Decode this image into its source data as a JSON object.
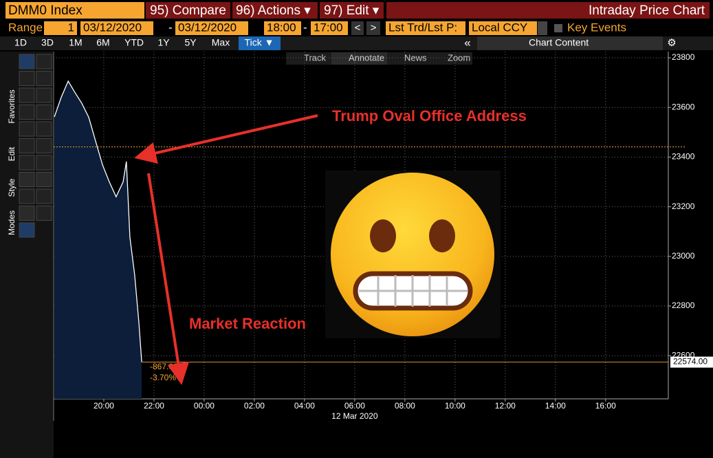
{
  "header": {
    "ticker": "DMM0 Index",
    "buttons": [
      "95) Compare",
      "96) Actions ▾",
      "97) Edit ▾"
    ],
    "title": "Intraday Price Chart"
  },
  "controls": {
    "range_label": "Range",
    "range_value": "1",
    "start_date": "03/12/2020",
    "dash": "-",
    "end_date": "03/12/2020",
    "start_time": "18:00",
    "end_time": "17:00",
    "prev": "<",
    "next": ">",
    "price_field": "Lst Trd/Lst P:",
    "currency": "Local CCY",
    "key_events": "Key Events"
  },
  "periods": [
    "1D",
    "3D",
    "1M",
    "6M",
    "YTD",
    "1Y",
    "5Y",
    "Max",
    "Tick ▼"
  ],
  "collapse": "«",
  "chart_content": "Chart Content",
  "toolbar": [
    "Track",
    "Annotate",
    "News",
    "Zoom"
  ],
  "sidebar_tabs": [
    "Favorites",
    "Edit",
    "Style",
    "Modes"
  ],
  "chart_data": {
    "type": "line",
    "color": "#ffffff",
    "area_color": "#0c1e3a",
    "x": [
      18.03,
      18.3,
      18.58,
      18.85,
      19.12,
      19.4,
      19.67,
      19.95,
      20.22,
      20.49,
      20.77,
      20.9,
      21.04,
      21.23,
      21.4,
      21.51
    ],
    "series": [
      {
        "values": [
          23562,
          23640,
          23706,
          23660,
          23617,
          23560,
          23465,
          23368,
          23300,
          23240,
          23300,
          23382,
          23077,
          22925,
          22731,
          22574
        ]
      }
    ],
    "xlim": [
      18,
      42.5
    ],
    "xticks": [
      {
        "value": 20,
        "label": "20:00"
      },
      {
        "value": 22,
        "label": "22:00"
      },
      {
        "value": 24,
        "label": "00:00"
      },
      {
        "value": 26,
        "label": "02:00"
      },
      {
        "value": 28,
        "label": "04:00"
      },
      {
        "value": 30,
        "label": "06:00"
      },
      {
        "value": 32,
        "label": "08:00"
      },
      {
        "value": 34,
        "label": "10:00"
      },
      {
        "value": 36,
        "label": "12:00"
      },
      {
        "value": 38,
        "label": "14:00"
      },
      {
        "value": 40,
        "label": "16:00"
      }
    ],
    "date_label": "12 Mar 2020",
    "ylim": [
      22426,
      23825
    ],
    "yticks": [
      22600,
      22800,
      23000,
      23200,
      23400,
      23600,
      23800
    ],
    "grid": true,
    "reference_value": 23441,
    "last_price": {
      "value": 22574,
      "label": "22574.00"
    },
    "change": {
      "value": -867,
      "label": "-867.00"
    },
    "change_pct": {
      "value": -3.7,
      "label": "-3.70%"
    },
    "annotations": [
      "Trump Oval Office Address",
      "Market Reaction"
    ]
  }
}
